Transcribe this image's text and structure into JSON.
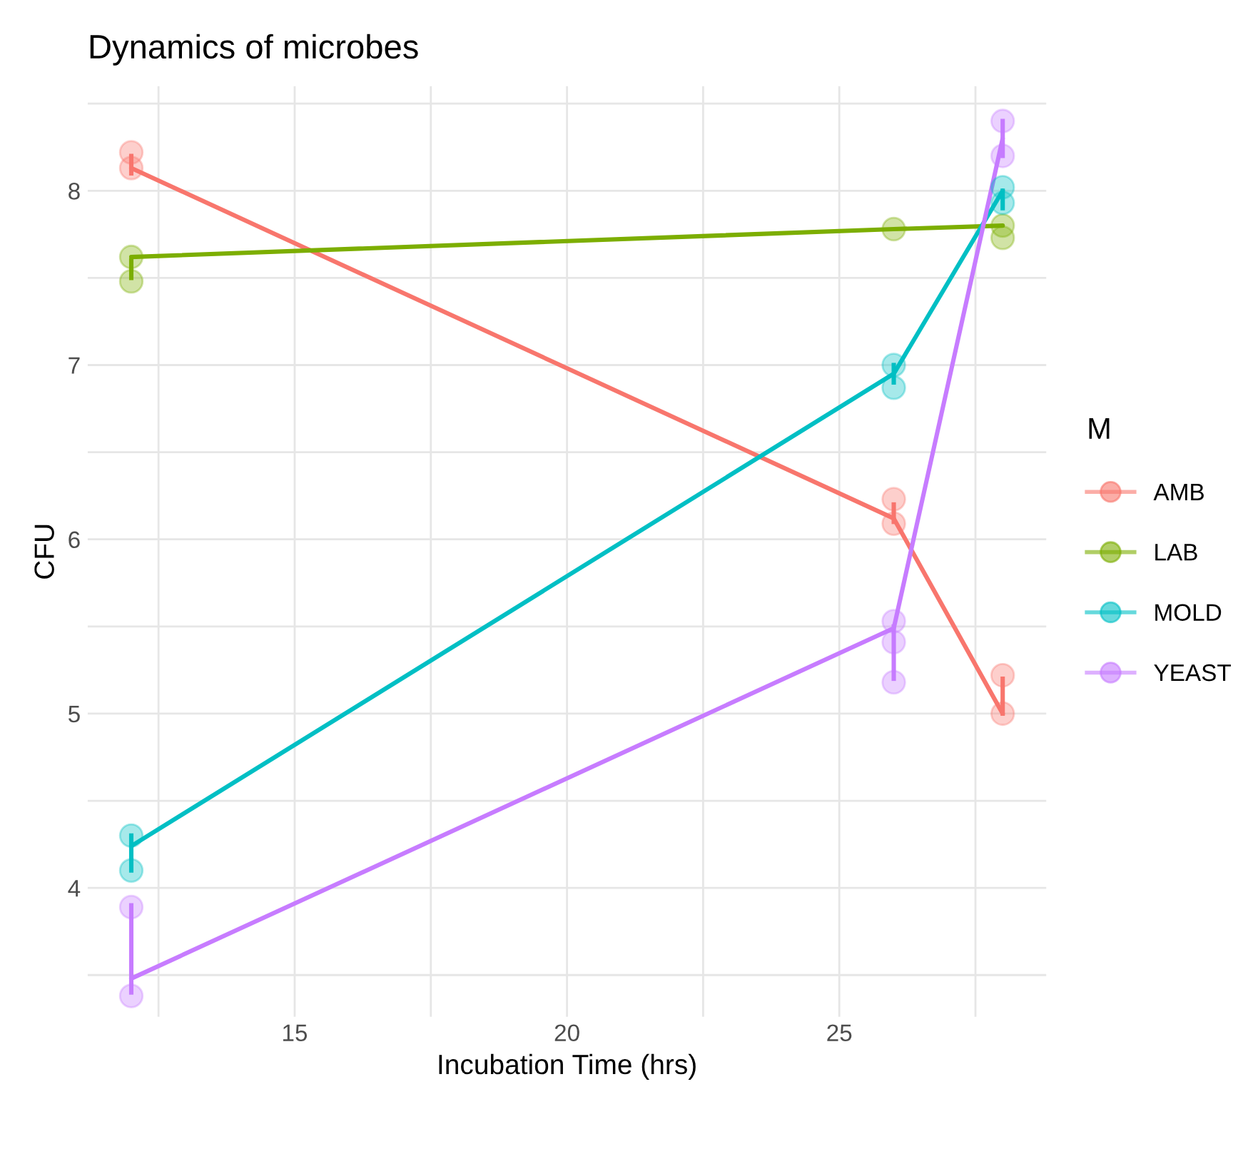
{
  "chart_data": {
    "type": "line",
    "title": "Dynamics of microbes",
    "xlabel": "Incubation Time (hrs)",
    "ylabel": "CFU",
    "legend_title": "M",
    "legend": "right",
    "grid": true,
    "marker": "none",
    "line_style": "solid",
    "xlim": [
      11.2,
      28.8
    ],
    "xticks": [
      {
        "value": 12.5,
        "label": null
      },
      15,
      {
        "value": 17.5,
        "label": null
      },
      20,
      {
        "value": 22.5,
        "label": null
      },
      25,
      {
        "value": 27.5,
        "label": null
      }
    ],
    "ylim": [
      3.26,
      8.6
    ],
    "yticks": [
      {
        "value": 3.5,
        "label": null
      },
      4,
      {
        "value": 4.5,
        "label": null
      },
      5,
      {
        "value": 5.5,
        "label": null
      },
      6,
      {
        "value": 6.5,
        "label": null
      },
      7,
      {
        "value": 7.5,
        "label": null
      },
      8,
      {
        "value": 8.5,
        "label": null
      }
    ],
    "series": [
      {
        "name": "AMB",
        "color": "#f8766d",
        "x": [
          12,
          26,
          28
        ],
        "values": [
          8.13,
          6.12,
          5.0
        ],
        "errors": [
          [
            8.1,
            8.2
          ],
          [
            6.1,
            6.2
          ],
          [
            5.0,
            5.2
          ]
        ]
      },
      {
        "name": "LAB",
        "color": "#7cae00",
        "x": [
          12,
          26,
          28
        ],
        "values": [
          7.62,
          7.78,
          7.8
        ],
        "errors": [
          [
            7.5,
            7.6
          ],
          null,
          null
        ]
      },
      {
        "name": "MOLD",
        "color": "#00bfc4",
        "x": [
          12,
          26,
          28
        ],
        "values": [
          4.24,
          6.95,
          8.0
        ],
        "errors": [
          [
            4.1,
            4.3
          ],
          [
            6.9,
            7.0
          ],
          [
            7.9,
            8.0
          ]
        ]
      },
      {
        "name": "YEAST",
        "color": "#c77cff",
        "x": [
          12,
          26,
          28
        ],
        "values": [
          3.48,
          5.49,
          8.3
        ],
        "errors": [
          [
            3.4,
            3.9
          ],
          [
            5.2,
            5.5
          ],
          [
            8.2,
            8.4
          ]
        ]
      },
      {
        "type": "scatter",
        "marker": "circle",
        "color": "#f8766d",
        "x": [
          12,
          12,
          26,
          26,
          28,
          28
        ],
        "values": [
          8.22,
          8.13,
          6.23,
          6.09,
          5.22,
          5.0
        ]
      },
      {
        "type": "scatter",
        "marker": "circle",
        "color": "#7cae00",
        "x": [
          12,
          12,
          26,
          28,
          28
        ],
        "values": [
          7.62,
          7.48,
          7.78,
          7.8,
          7.73
        ]
      },
      {
        "type": "scatter",
        "marker": "circle",
        "color": "#00bfc4",
        "x": [
          12,
          12,
          26,
          26,
          28,
          28
        ],
        "values": [
          4.3,
          4.1,
          7.0,
          6.87,
          8.02,
          7.93
        ]
      },
      {
        "type": "scatter",
        "marker": "circle",
        "color": "#c77cff",
        "x": [
          12,
          12,
          26,
          26,
          26,
          28,
          28
        ],
        "values": [
          3.89,
          3.38,
          5.53,
          5.41,
          5.18,
          8.4,
          8.2
        ]
      }
    ]
  }
}
